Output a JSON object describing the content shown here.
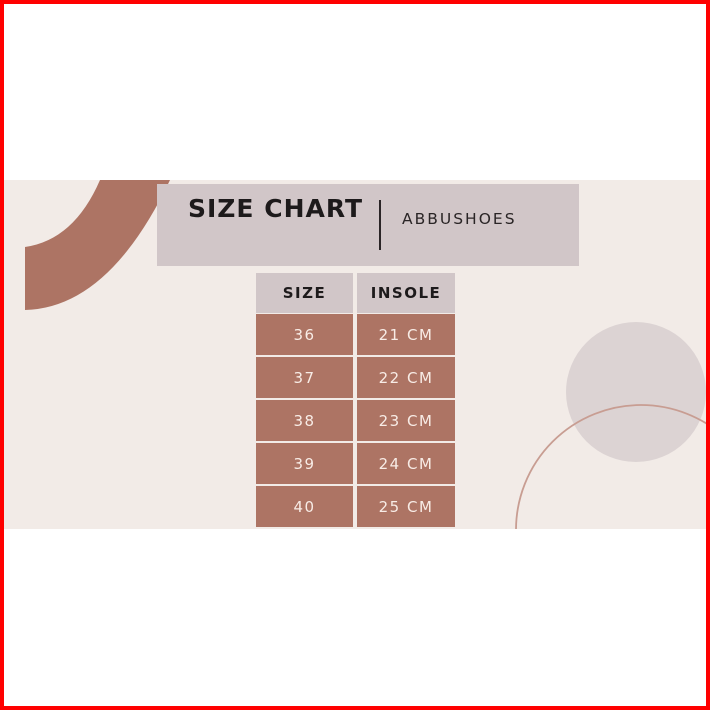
{
  "header": {
    "title": "SIZE CHART",
    "brand": "ABBUSHOES"
  },
  "table": {
    "columns": [
      "SIZE",
      "INSOLE"
    ],
    "rows": [
      [
        "36",
        "21 CM"
      ],
      [
        "37",
        "22 CM"
      ],
      [
        "38",
        "23 CM"
      ],
      [
        "39",
        "24 CM"
      ],
      [
        "40",
        "25 CM"
      ]
    ]
  },
  "colors": {
    "background": "#f2ebe7",
    "accent": "#ad7464",
    "header_box": "#d1c6c8",
    "circle": "#dcd3d3"
  }
}
